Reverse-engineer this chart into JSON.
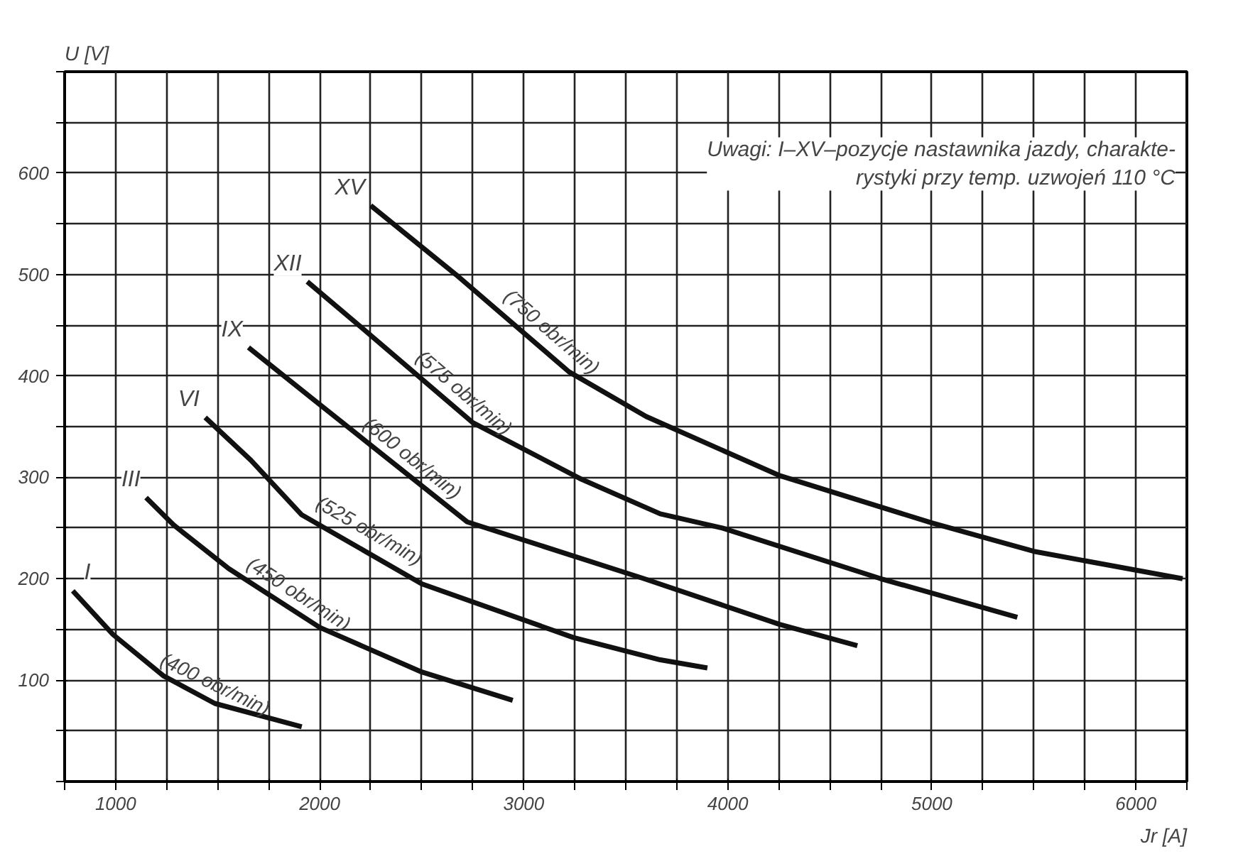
{
  "chart_data": {
    "type": "line",
    "xlabel": "Jr [A]",
    "ylabel": "U [V]",
    "xlim": [
      750,
      6250
    ],
    "ylim": [
      0,
      700
    ],
    "xticks": [
      {
        "value": 750,
        "label": null
      },
      1000,
      {
        "value": 1250,
        "label": null
      },
      {
        "value": 1500,
        "label": null
      },
      {
        "value": 1750,
        "label": null
      },
      2000,
      {
        "value": 2250,
        "label": null
      },
      {
        "value": 2500,
        "label": null
      },
      {
        "value": 2750,
        "label": null
      },
      3000,
      {
        "value": 3250,
        "label": null
      },
      {
        "value": 3500,
        "label": null
      },
      {
        "value": 3750,
        "label": null
      },
      4000,
      {
        "value": 4250,
        "label": null
      },
      {
        "value": 4500,
        "label": null
      },
      {
        "value": 4750,
        "label": null
      },
      5000,
      {
        "value": 5250,
        "label": null
      },
      {
        "value": 5500,
        "label": null
      },
      {
        "value": 5750,
        "label": null
      },
      6000,
      {
        "value": 6250,
        "label": null
      }
    ],
    "yticks": [
      {
        "value": 0,
        "label": null
      },
      {
        "value": 50,
        "label": null
      },
      100,
      {
        "value": 150,
        "label": null
      },
      200,
      {
        "value": 250,
        "label": null
      },
      300,
      {
        "value": 350,
        "label": null
      },
      400,
      {
        "value": 450,
        "label": null
      },
      500,
      {
        "value": 550,
        "label": null
      },
      600,
      {
        "value": 650,
        "label": null
      },
      {
        "value": 700,
        "label": null
      }
    ],
    "grid": true,
    "marker": "none",
    "line_style": "solid",
    "series": [
      {
        "name": "I",
        "color": "#111111",
        "x": [
          790,
          987,
          1236,
          1486,
          1912
        ],
        "values": [
          188,
          145,
          104,
          77,
          54
        ]
      },
      {
        "name": "III",
        "color": "#111111",
        "x": [
          1149,
          1284,
          1554,
          2000,
          2500,
          2946
        ],
        "values": [
          280,
          253,
          210,
          152,
          108,
          80
        ]
      },
      {
        "name": "VI",
        "color": "#111111",
        "x": [
          1439,
          1662,
          1912,
          2500,
          3243,
          3669,
          3900
        ],
        "values": [
          359,
          317,
          263,
          195,
          142,
          120,
          112
        ]
      },
      {
        "name": "IX",
        "color": "#111111",
        "x": [
          1651,
          1980,
          2723,
          3590,
          4254,
          4635
        ],
        "values": [
          428,
          375,
          256,
          200,
          155,
          134
        ]
      },
      {
        "name": "XII",
        "color": "#111111",
        "x": [
          1939,
          2215,
          2750,
          3284,
          3669,
          3973,
          4750,
          5419
        ],
        "values": [
          493,
          446,
          354,
          298,
          264,
          250,
          200,
          162
        ]
      },
      {
        "name": "XV",
        "color": "#111111",
        "x": [
          2250,
          2667,
          3222,
          3600,
          4250,
          5000,
          5500,
          6229
        ],
        "values": [
          568,
          500,
          404,
          360,
          302,
          255,
          227,
          200
        ]
      }
    ],
    "annotations": [
      "Uwagi: I–XV–pozycje nastawnika jazdy, charakte-\nrystyki przy temp. uzwojeń 110 °C",
      {
        "text": "(400 obr/min)",
        "x": 1450,
        "y": 80
      },
      {
        "text": "(450 obr/min)",
        "x": 1850,
        "y": 170
      },
      {
        "text": "(525 obr/min)",
        "x": 2200,
        "y": 232
      },
      {
        "text": "(600 obr/min)",
        "x": 2400,
        "y": 305
      },
      {
        "text": "(575 obr/min)",
        "x": 2650,
        "y": 370
      },
      {
        "text": "(750 obr/min)",
        "x": 3080,
        "y": 430
      }
    ]
  }
}
